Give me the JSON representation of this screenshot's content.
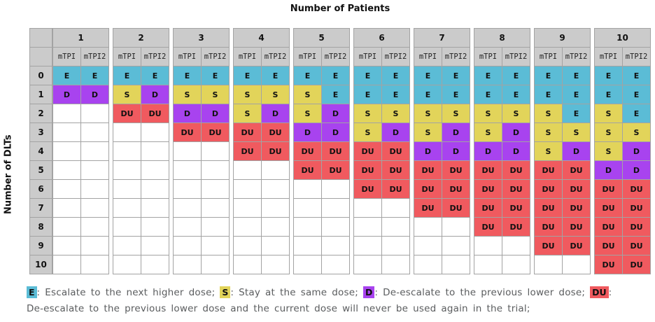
{
  "chart_data": {
    "type": "table",
    "title": "Number of Patients",
    "ylabel": "Number of DLTs",
    "design_labels": [
      "mTPI",
      "mTPI2"
    ],
    "dlt_labels": [
      "0",
      "1",
      "2",
      "3",
      "4",
      "5",
      "6",
      "7",
      "8",
      "9",
      "10"
    ],
    "groups": [
      {
        "patients": "1",
        "mtpi": [
          "E",
          "D",
          "",
          "",
          "",
          "",
          "",
          "",
          "",
          "",
          ""
        ],
        "mtpi2": [
          "E",
          "D",
          "",
          "",
          "",
          "",
          "",
          "",
          "",
          "",
          ""
        ]
      },
      {
        "patients": "2",
        "mtpi": [
          "E",
          "S",
          "DU",
          "",
          "",
          "",
          "",
          "",
          "",
          "",
          ""
        ],
        "mtpi2": [
          "E",
          "D",
          "DU",
          "",
          "",
          "",
          "",
          "",
          "",
          "",
          ""
        ]
      },
      {
        "patients": "3",
        "mtpi": [
          "E",
          "S",
          "D",
          "DU",
          "",
          "",
          "",
          "",
          "",
          "",
          ""
        ],
        "mtpi2": [
          "E",
          "S",
          "D",
          "DU",
          "",
          "",
          "",
          "",
          "",
          "",
          ""
        ]
      },
      {
        "patients": "4",
        "mtpi": [
          "E",
          "S",
          "S",
          "DU",
          "DU",
          "",
          "",
          "",
          "",
          "",
          ""
        ],
        "mtpi2": [
          "E",
          "S",
          "D",
          "DU",
          "DU",
          "",
          "",
          "",
          "",
          "",
          ""
        ]
      },
      {
        "patients": "5",
        "mtpi": [
          "E",
          "S",
          "S",
          "D",
          "DU",
          "DU",
          "",
          "",
          "",
          "",
          ""
        ],
        "mtpi2": [
          "E",
          "E",
          "D",
          "D",
          "DU",
          "DU",
          "",
          "",
          "",
          "",
          ""
        ]
      },
      {
        "patients": "6",
        "mtpi": [
          "E",
          "E",
          "S",
          "S",
          "DU",
          "DU",
          "DU",
          "",
          "",
          "",
          ""
        ],
        "mtpi2": [
          "E",
          "E",
          "S",
          "D",
          "DU",
          "DU",
          "DU",
          "",
          "",
          "",
          ""
        ]
      },
      {
        "patients": "7",
        "mtpi": [
          "E",
          "E",
          "S",
          "S",
          "D",
          "DU",
          "DU",
          "DU",
          "",
          "",
          ""
        ],
        "mtpi2": [
          "E",
          "E",
          "S",
          "D",
          "D",
          "DU",
          "DU",
          "DU",
          "",
          "",
          ""
        ]
      },
      {
        "patients": "8",
        "mtpi": [
          "E",
          "E",
          "S",
          "S",
          "D",
          "DU",
          "DU",
          "DU",
          "DU",
          "",
          ""
        ],
        "mtpi2": [
          "E",
          "E",
          "S",
          "D",
          "D",
          "DU",
          "DU",
          "DU",
          "DU",
          "",
          ""
        ]
      },
      {
        "patients": "9",
        "mtpi": [
          "E",
          "E",
          "S",
          "S",
          "S",
          "DU",
          "DU",
          "DU",
          "DU",
          "DU",
          ""
        ],
        "mtpi2": [
          "E",
          "E",
          "E",
          "S",
          "D",
          "DU",
          "DU",
          "DU",
          "DU",
          "DU",
          ""
        ]
      },
      {
        "patients": "10",
        "mtpi": [
          "E",
          "E",
          "S",
          "S",
          "S",
          "D",
          "DU",
          "DU",
          "DU",
          "DU",
          "DU"
        ],
        "mtpi2": [
          "E",
          "E",
          "E",
          "S",
          "D",
          "D",
          "DU",
          "DU",
          "DU",
          "DU",
          "DU"
        ]
      }
    ],
    "legend": [
      {
        "code": "E",
        "text": ": Escalate to the next higher dose; "
      },
      {
        "code": "S",
        "text": ": Stay at the same dose; "
      },
      {
        "code": "D",
        "text": ": De-escalate to the previous lower dose; "
      },
      {
        "code": "DU",
        "text": ": De-escalate to the previous lower dose and the current dose will never be used again in the trial;"
      }
    ],
    "colors": {
      "E": "#5bbcd6",
      "S": "#e2d45a",
      "D": "#a843ef",
      "DU": "#f05a5f",
      "header_bg": "#cbcbcb",
      "border": "#a3a3a3",
      "legend_text": "#5a5c5e"
    }
  }
}
